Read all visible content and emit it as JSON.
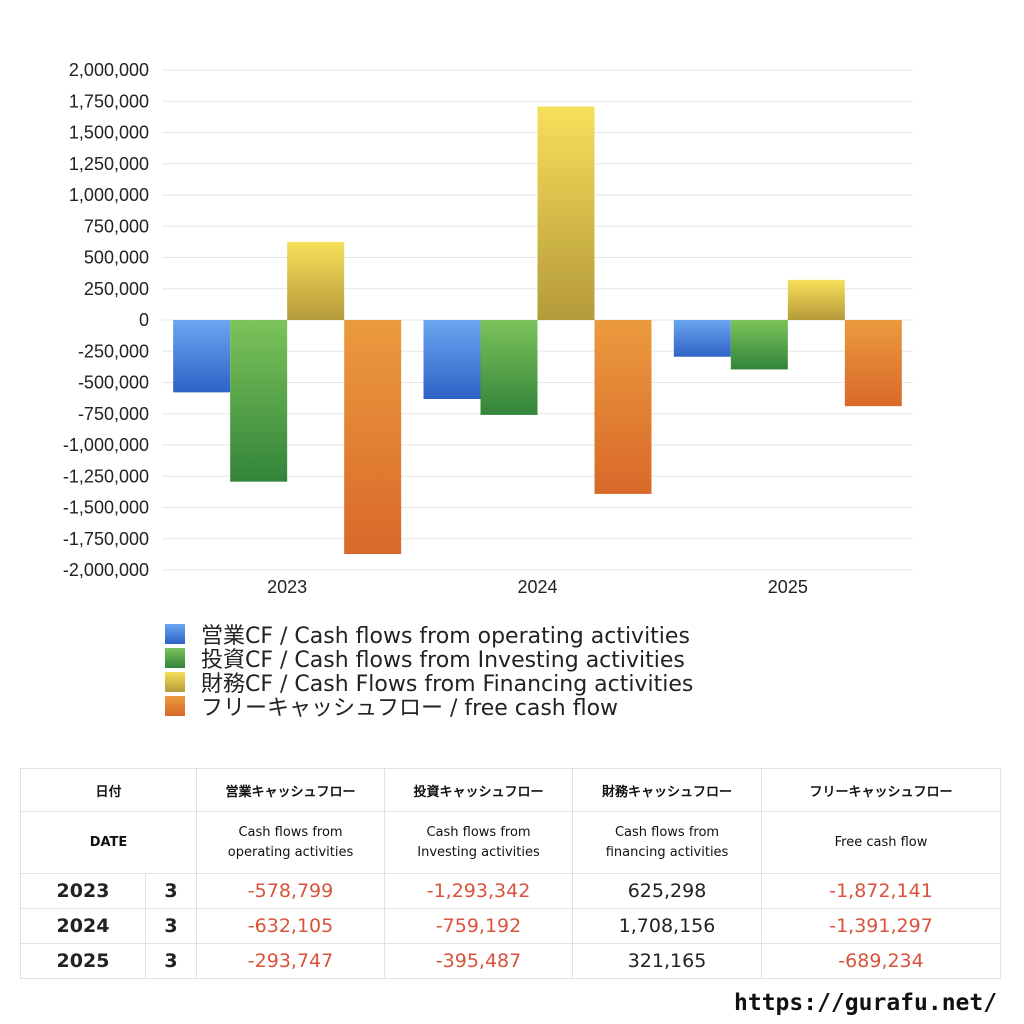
{
  "chart_data": {
    "type": "bar",
    "categories": [
      "2023",
      "2024",
      "2025"
    ],
    "series": [
      {
        "name": "営業CF / Cash flows from operating activities",
        "values": [
          -578799,
          -632105,
          -293747
        ],
        "color_top": "#6aa6f0",
        "color_bottom": "#2f62c6"
      },
      {
        "name": "投資CF / Cash flows from Investing activities",
        "values": [
          -1293342,
          -759192,
          -395487
        ],
        "color_top": "#7cc35a",
        "color_bottom": "#33843a"
      },
      {
        "name": "財務CF / Cash Flows from Financing activities",
        "values": [
          625298,
          1708156,
          321165
        ],
        "color_top": "#f6e05a",
        "color_bottom": "#b59a3a"
      },
      {
        "name": "フリーキャッシュフロー / free cash flow",
        "values": [
          -1872141,
          -1391297,
          -689234
        ],
        "color_top": "#eb9a3e",
        "color_bottom": "#d9692a"
      }
    ],
    "yticks": [
      "2,000,000",
      "1,750,000",
      "1,500,000",
      "1,250,000",
      "1,000,000",
      "750,000",
      "500,000",
      "250,000",
      "0",
      "-250,000",
      "-500,000",
      "-750,000",
      "-1,000,000",
      "-1,250,000",
      "-1,500,000",
      "-1,750,000",
      "-2,000,000"
    ],
    "ylim": [
      -2000000,
      2000000
    ],
    "grid": true,
    "legend_position": "bottom-left"
  },
  "table": {
    "headers": [
      "日付",
      "営業キャッシュフロー",
      "投資キャッシュフロー",
      "財務キャッシュフロー",
      "フリーキャッシュフロー"
    ],
    "subheaders": {
      "date": "DATE",
      "operating": [
        "Cash flows from",
        "operating activities"
      ],
      "investing": [
        "Cash flows from",
        "Investing activities"
      ],
      "financing": [
        "Cash flows from",
        "financing activities"
      ],
      "free": "Free cash flow"
    },
    "rows": [
      {
        "year": "2023",
        "month": "3",
        "operating": "-578,799",
        "investing": "-1,293,342",
        "financing": "625,298",
        "free": "-1,872,141"
      },
      {
        "year": "2024",
        "month": "3",
        "operating": "-632,105",
        "investing": "-759,192",
        "financing": "1,708,156",
        "free": "-1,391,297"
      },
      {
        "year": "2025",
        "month": "3",
        "operating": "-293,747",
        "investing": "-395,487",
        "financing": "321,165",
        "free": "-689,234"
      }
    ]
  },
  "site_url": "https://gurafu.net/"
}
